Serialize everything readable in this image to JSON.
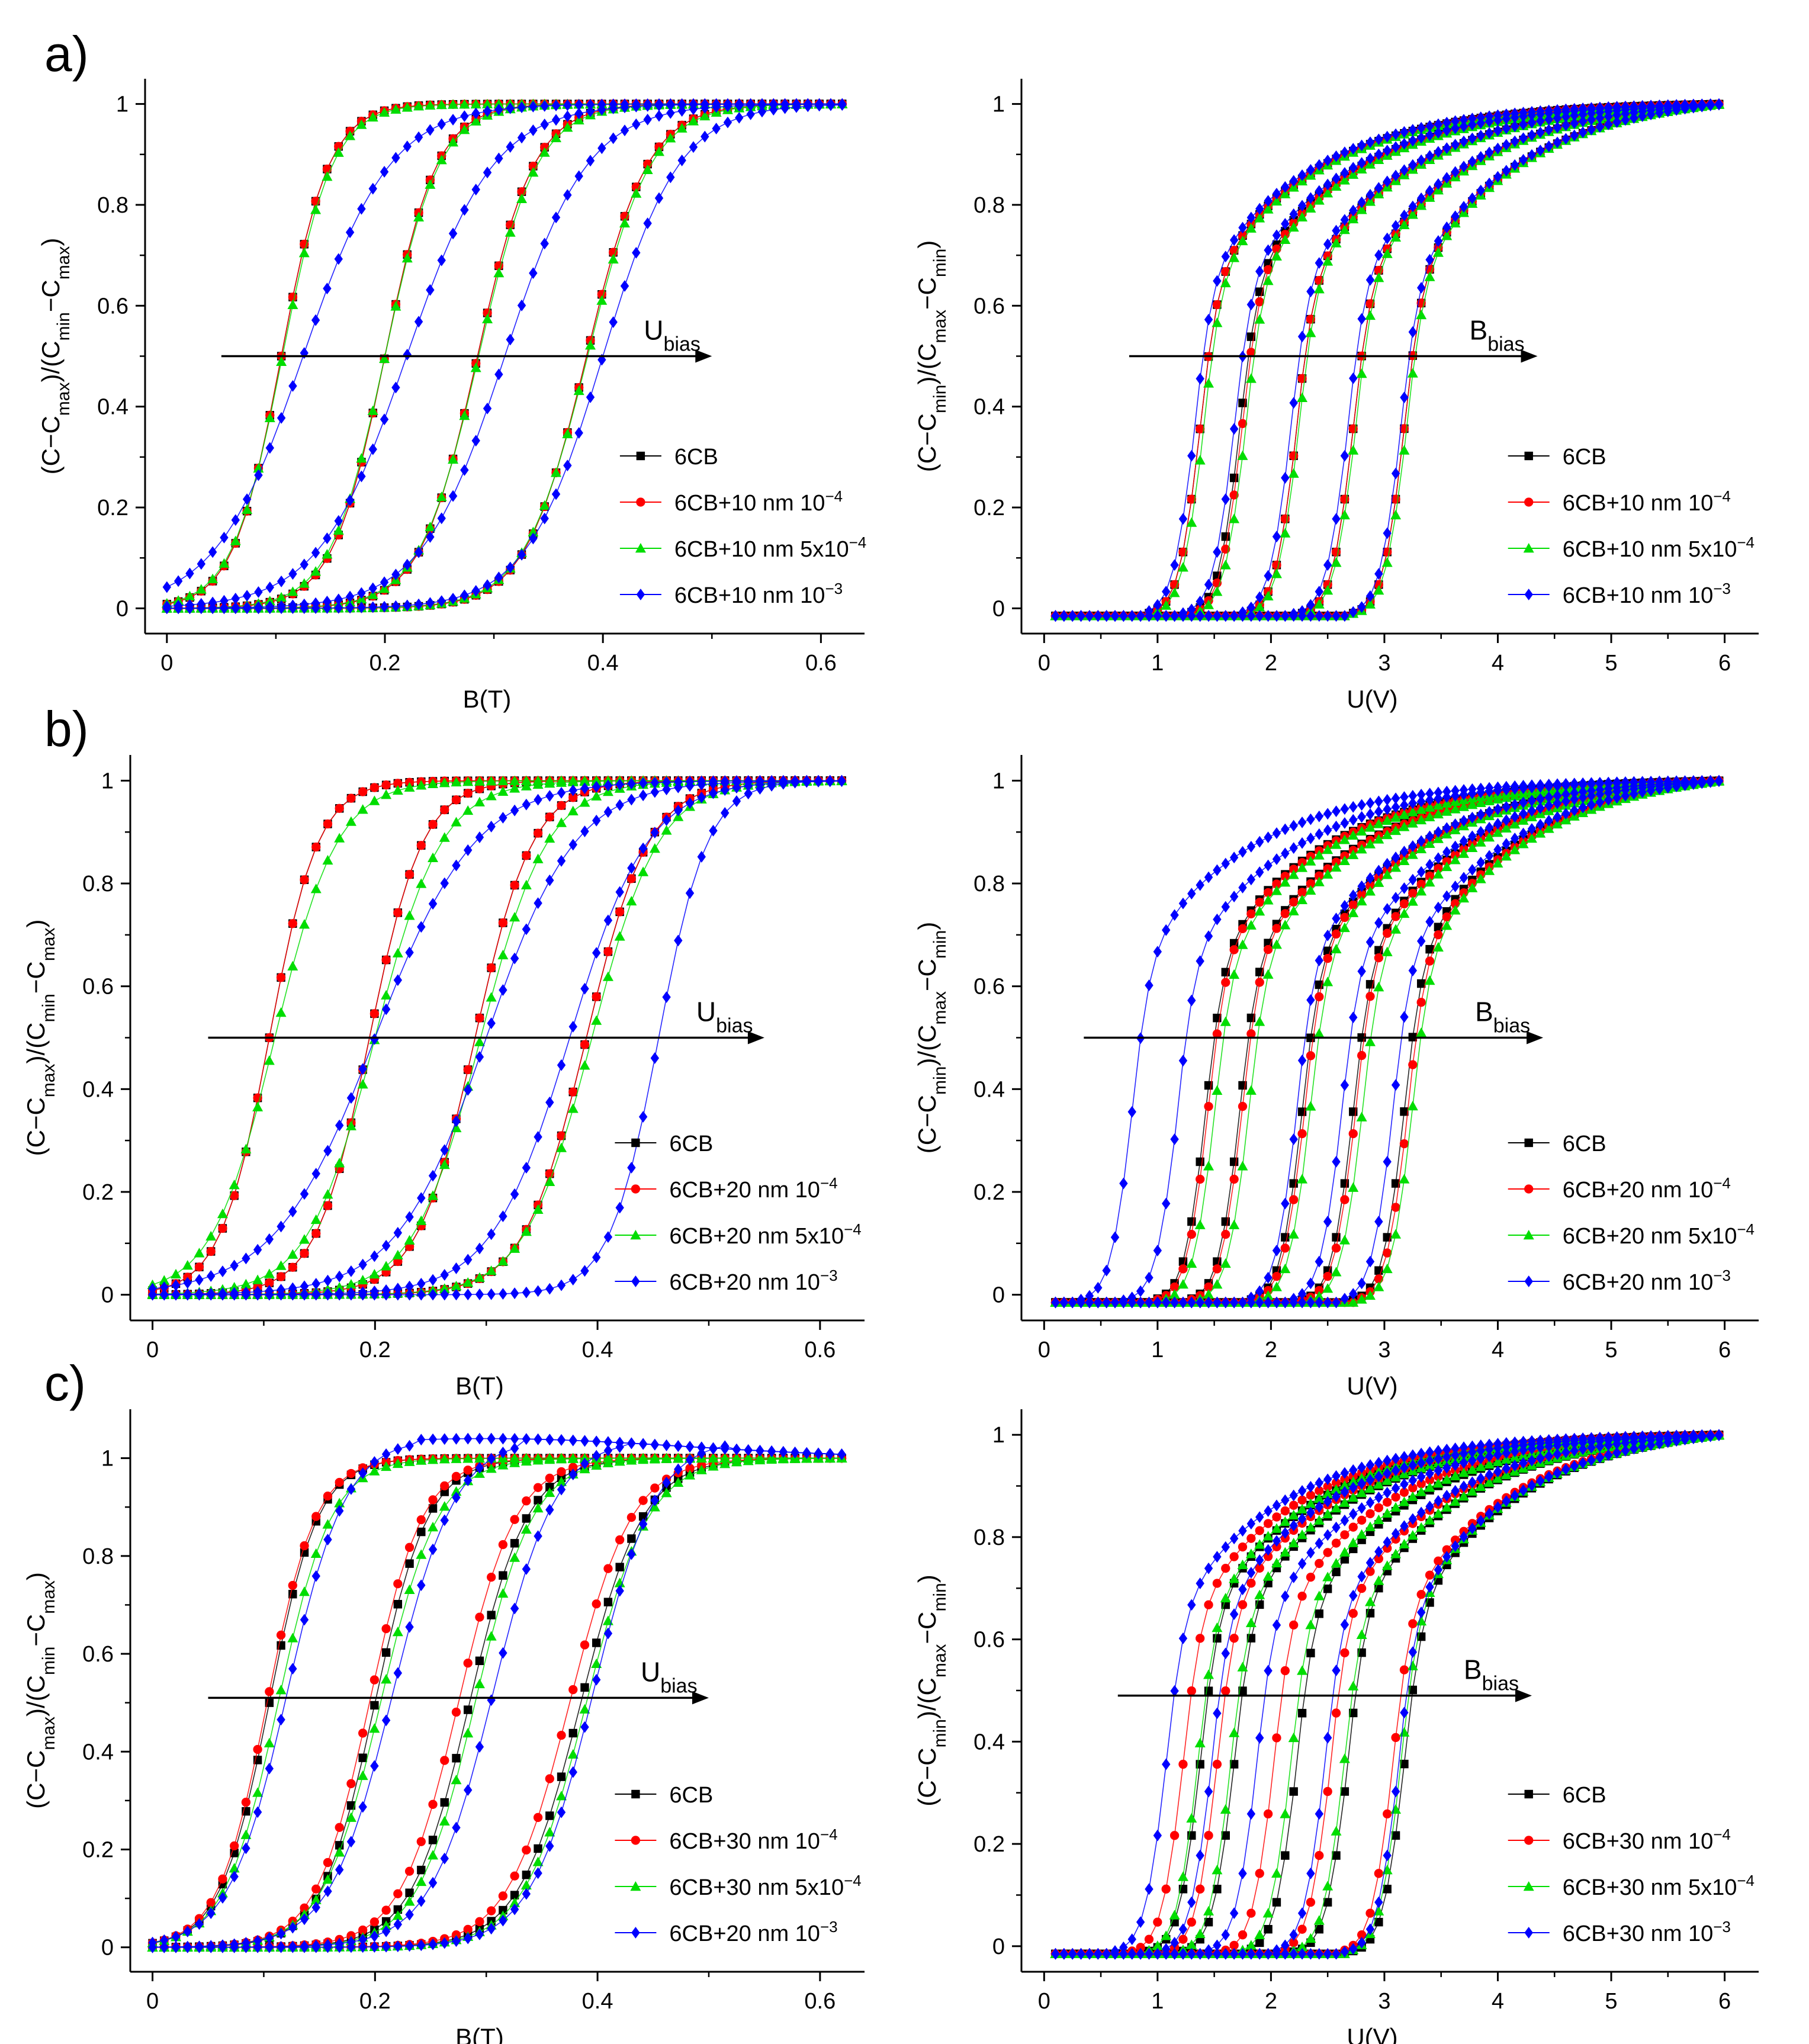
{
  "figure": {
    "rows": [
      {
        "letter": "a)",
        "left_chart": 0,
        "right_chart": 1
      },
      {
        "letter": "b)",
        "left_chart": 2,
        "right_chart": 3
      },
      {
        "letter": "c)",
        "left_chart": 4,
        "right_chart": 5
      }
    ]
  },
  "chart_data": [
    {
      "id": "a-left",
      "type": "line",
      "panel": "a)",
      "xlabel": "B(T)",
      "ylabel_html": "(C−C<tspan baseline-shift='sub' font-size='30'>max</tspan>)/(C<tspan baseline-shift='sub' font-size='30'>min</tspan>−C<tspan baseline-shift='sub' font-size='30'>max</tspan>)",
      "ylabel": "(C−Cmax)/(Cmin−Cmax)",
      "xlim": [
        -0.02,
        0.64
      ],
      "ylim": [
        -0.05,
        1.05
      ],
      "xticks": [
        0,
        0.2,
        0.4,
        0.6
      ],
      "xtick_labels": [
        "0",
        "0.2",
        "0.4",
        "0.6"
      ],
      "yticks": [
        0,
        0.2,
        0.4,
        0.6,
        0.8,
        1
      ],
      "ytick_labels": [
        "0",
        "0.2",
        "0.4",
        "0.6",
        "0.8",
        "1"
      ],
      "arrow": {
        "label": "U",
        "sub": "bias",
        "y": 0.5,
        "x_from": 0.05,
        "x_to": 0.5
      },
      "legend": [
        "6CB",
        "6CB+10 nm 10",
        "6CB+10 nm 5x10",
        "6CB+10 nm 10"
      ],
      "legend_sup": [
        "",
        "−4",
        "−4",
        "−3"
      ],
      "model": "B",
      "series": [
        {
          "name": "6CB",
          "color": "#000000",
          "marker": "square",
          "x50": [
            0.105,
            0.2,
            0.285,
            0.385
          ],
          "width": [
            0.022,
            0.024,
            0.026,
            0.028
          ]
        },
        {
          "name": "6CB+10 nm 10^-4",
          "color": "#ff0000",
          "marker": "circle",
          "x50": [
            0.105,
            0.2,
            0.285,
            0.385
          ],
          "width": [
            0.022,
            0.024,
            0.026,
            0.028
          ]
        },
        {
          "name": "6CB+10 nm 5x10^-4",
          "color": "#00dd00",
          "marker": "triangle",
          "x50": [
            0.106,
            0.2,
            0.286,
            0.386
          ],
          "width": [
            0.023,
            0.025,
            0.027,
            0.029
          ]
        },
        {
          "name": "6CB+10 nm 10^-3",
          "color": "#0000ff",
          "marker": "diamond",
          "x50": [
            0.125,
            0.22,
            0.31,
            0.4
          ],
          "width": [
            0.04,
            0.04,
            0.038,
            0.035
          ]
        }
      ]
    },
    {
      "id": "a-right",
      "type": "line",
      "panel": "a)",
      "xlabel": "U(V)",
      "ylabel": "(C−Cmin)/(Cmax−Cmin)",
      "xlim": [
        -0.2,
        6.3
      ],
      "ylim": [
        -0.05,
        1.05
      ],
      "xticks": [
        0,
        1,
        2,
        3,
        4,
        5,
        6
      ],
      "xtick_labels": [
        "0",
        "1",
        "2",
        "3",
        "4",
        "5",
        "6"
      ],
      "yticks": [
        0,
        0.2,
        0.4,
        0.6,
        0.8,
        1
      ],
      "ytick_labels": [
        "0",
        "0.2",
        "0.4",
        "0.6",
        "0.8",
        "1"
      ],
      "arrow": {
        "label": "B",
        "sub": "bias",
        "y": 0.5,
        "x_from": 0.75,
        "x_to": 4.35
      },
      "legend": [
        "6CB",
        "6CB+10 nm 10",
        "6CB+10 nm 5x10",
        "6CB+10 nm 10"
      ],
      "legend_sup": [
        "",
        "−4",
        "−4",
        "−3"
      ],
      "model": "U",
      "series": [
        {
          "name": "6CB",
          "color": "#000000",
          "marker": "square",
          "x50": [
            1.35,
            1.7,
            2.2,
            2.7,
            3.15
          ]
        },
        {
          "name": "6CB+10 nm 10^-4",
          "color": "#ff0000",
          "marker": "circle",
          "x50": [
            1.35,
            1.72,
            2.2,
            2.7,
            3.15
          ]
        },
        {
          "name": "6CB+10 nm 5x10^-4",
          "color": "#00dd00",
          "marker": "triangle",
          "x50": [
            1.38,
            1.75,
            2.22,
            2.72,
            3.17
          ]
        },
        {
          "name": "6CB+10 nm 10^-3",
          "color": "#0000ff",
          "marker": "diamond",
          "x50": [
            1.3,
            1.65,
            2.15,
            2.65,
            3.12
          ]
        }
      ]
    },
    {
      "id": "b-left",
      "type": "line",
      "panel": "b)",
      "xlabel": "B(T)",
      "ylabel": "(C−Cmax)/(Cmin−Cmax)",
      "xlim": [
        -0.02,
        0.64
      ],
      "ylim": [
        -0.05,
        1.05
      ],
      "xticks": [
        0,
        0.2,
        0.4,
        0.6
      ],
      "xtick_labels": [
        "0",
        "0.2",
        "0.4",
        "0.6"
      ],
      "yticks": [
        0,
        0.2,
        0.4,
        0.6,
        0.8,
        1
      ],
      "ytick_labels": [
        "0",
        "0.2",
        "0.4",
        "0.6",
        "0.8",
        "1"
      ],
      "arrow": {
        "label": "U",
        "sub": "bias",
        "y": 0.5,
        "x_from": 0.05,
        "x_to": 0.55
      },
      "legend": [
        "6CB",
        "6CB+20 nm 10",
        "6CB+20 nm 5x10",
        "6CB+20 nm 10"
      ],
      "legend_sup": [
        "",
        "−4",
        "−4",
        "−3"
      ],
      "model": "B",
      "series": [
        {
          "name": "6CB",
          "color": "#000000",
          "marker": "square",
          "x50": [
            0.105,
            0.195,
            0.29,
            0.39
          ],
          "width": [
            0.022,
            0.024,
            0.026,
            0.028
          ]
        },
        {
          "name": "6CB+20 nm 10^-4",
          "color": "#ff0000",
          "marker": "circle",
          "x50": [
            0.105,
            0.195,
            0.29,
            0.39
          ],
          "width": [
            0.022,
            0.024,
            0.026,
            0.028
          ]
        },
        {
          "name": "6CB+20 nm 5x10^-4",
          "color": "#00dd00",
          "marker": "triangle",
          "x50": [
            0.11,
            0.2,
            0.295,
            0.395
          ],
          "width": [
            0.028,
            0.03,
            0.03,
            0.03
          ]
        },
        {
          "name": "6CB+20 nm 10^-3",
          "color": "#0000ff",
          "marker": "diamond",
          "x50": [
            0.2,
            0.3,
            0.375,
            0.455
          ],
          "width": [
            0.045,
            0.04,
            0.035,
            0.022
          ]
        }
      ]
    },
    {
      "id": "b-right",
      "type": "line",
      "panel": "b)",
      "xlabel": "U(V)",
      "ylabel": "(C−Cmin)/(Cmax−Cmin)",
      "xlim": [
        -0.2,
        6.3
      ],
      "ylim": [
        -0.05,
        1.05
      ],
      "xticks": [
        0,
        1,
        2,
        3,
        4,
        5,
        6
      ],
      "xtick_labels": [
        "0",
        "1",
        "2",
        "3",
        "4",
        "5",
        "6"
      ],
      "yticks": [
        0,
        0.2,
        0.4,
        0.6,
        0.8,
        1
      ],
      "ytick_labels": [
        "0",
        "0.2",
        "0.4",
        "0.6",
        "0.8",
        "1"
      ],
      "arrow": {
        "label": "B",
        "sub": "bias",
        "y": 0.5,
        "x_from": 0.35,
        "x_to": 4.4
      },
      "legend": [
        "6CB",
        "6CB+20 nm 10",
        "6CB+20 nm 5x10",
        "6CB+20 nm 10"
      ],
      "legend_sup": [
        "",
        "−4",
        "−4",
        "−3"
      ],
      "model": "U",
      "series": [
        {
          "name": "6CB",
          "color": "#000000",
          "marker": "square",
          "x50": [
            1.4,
            1.7,
            2.25,
            2.7,
            3.15
          ]
        },
        {
          "name": "6CB+20 nm 10^-4",
          "color": "#ff0000",
          "marker": "circle",
          "x50": [
            1.42,
            1.72,
            2.27,
            2.72,
            3.18
          ]
        },
        {
          "name": "6CB+20 nm 5x10^-4",
          "color": "#00dd00",
          "marker": "triangle",
          "x50": [
            1.48,
            1.78,
            2.32,
            2.78,
            3.22
          ]
        },
        {
          "name": "6CB+20 nm 10^-3",
          "color": "#0000ff",
          "marker": "diamond",
          "x50": [
            0.75,
            1.15,
            2.2,
            2.6,
            3.05
          ]
        }
      ]
    },
    {
      "id": "c-left",
      "type": "line",
      "panel": "c)",
      "xlabel": "B(T)",
      "ylabel": "(C−Cmax)/(Cmin−Cmax)",
      "xlim": [
        -0.02,
        0.64
      ],
      "ylim": [
        -0.05,
        1.1
      ],
      "xticks": [
        0,
        0.2,
        0.4,
        0.6
      ],
      "xtick_labels": [
        "0",
        "0.2",
        "0.4",
        "0.6"
      ],
      "yticks": [
        0,
        0.2,
        0.4,
        0.6,
        0.8,
        1
      ],
      "ytick_labels": [
        "0",
        "0.2",
        "0.4",
        "0.6",
        "0.8",
        "1"
      ],
      "arrow": {
        "label": "U",
        "sub": "bias",
        "y": 0.51,
        "x_from": 0.05,
        "x_to": 0.5
      },
      "legend": [
        "6CB",
        "6CB+30 nm 10",
        "6CB+30 nm 5x10",
        "6CB+20 nm 10"
      ],
      "legend_sup": [
        "",
        "−4",
        "−4",
        "−3"
      ],
      "model": "B",
      "series": [
        {
          "name": "6CB",
          "color": "#000000",
          "marker": "square",
          "x50": [
            0.105,
            0.2,
            0.285,
            0.385
          ],
          "width": [
            0.022,
            0.024,
            0.026,
            0.028
          ]
        },
        {
          "name": "6CB+30 nm 10^-4",
          "color": "#ff0000",
          "marker": "circle",
          "x50": [
            0.103,
            0.195,
            0.275,
            0.375
          ],
          "width": [
            0.022,
            0.024,
            0.026,
            0.028
          ]
        },
        {
          "name": "6CB+30 nm 5x10^-4",
          "color": "#00dd00",
          "marker": "triangle",
          "x50": [
            0.113,
            0.205,
            0.29,
            0.39
          ],
          "width": [
            0.024,
            0.026,
            0.026,
            0.028
          ]
        },
        {
          "name": "6CB+20 nm 10^-3",
          "color": "#0000ff",
          "marker": "diamond",
          "x50": [
            0.12,
            0.215,
            0.305,
            0.395
          ],
          "width": [
            0.026,
            0.028,
            0.028,
            0.028
          ],
          "overshoot": 1.04
        }
      ]
    },
    {
      "id": "c-right",
      "type": "line",
      "panel": "c)",
      "xlabel": "U(V)",
      "ylabel": "(C−Cmin)/(Cmax−Cmin)",
      "xlim": [
        -0.2,
        6.3
      ],
      "ylim": [
        -0.05,
        1.05
      ],
      "xticks": [
        0,
        1,
        2,
        3,
        4,
        5,
        6
      ],
      "xtick_labels": [
        "0",
        "1",
        "2",
        "3",
        "4",
        "5",
        "6"
      ],
      "yticks": [
        0,
        0.2,
        0.4,
        0.6,
        0.8,
        1
      ],
      "ytick_labels": [
        "0",
        "0.2",
        "0.4",
        "0.6",
        "0.8",
        "1"
      ],
      "arrow": {
        "label": "B",
        "sub": "bias",
        "y": 0.49,
        "x_from": 0.65,
        "x_to": 4.3
      },
      "legend": [
        "6CB",
        "6CB+30 nm 10",
        "6CB+30 nm 5x10",
        "6CB+30 nm 10"
      ],
      "legend_sup": [
        "",
        "−4",
        "−4",
        "−3"
      ],
      "model": "U",
      "series": [
        {
          "name": "6CB",
          "color": "#000000",
          "marker": "square",
          "x50": [
            1.35,
            1.65,
            2.2,
            2.65,
            3.15
          ]
        },
        {
          "name": "6CB+30 nm 10^-4",
          "color": "#ff0000",
          "marker": "circle",
          "x50": [
            1.2,
            1.5,
            2.0,
            2.5,
            3.05
          ]
        },
        {
          "name": "6CB+30 nm 5x10^-4",
          "color": "#00dd00",
          "marker": "triangle",
          "x50": [
            1.33,
            1.62,
            2.15,
            2.62,
            3.12
          ]
        },
        {
          "name": "6CB+30 nm 10^-3",
          "color": "#0000ff",
          "marker": "diamond",
          "x50": [
            1.05,
            1.45,
            1.85,
            2.45,
            3.1
          ]
        }
      ]
    }
  ]
}
